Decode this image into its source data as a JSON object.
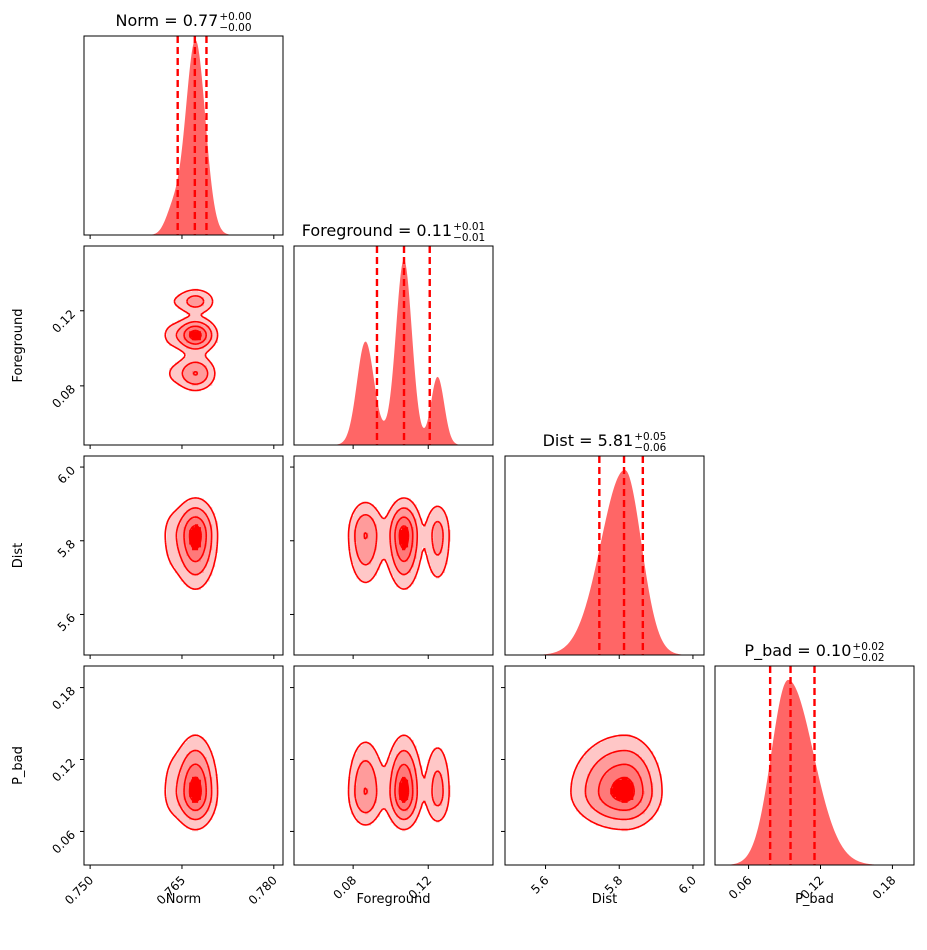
{
  "chart_data": {
    "type": "corner",
    "color": "#ff0000",
    "parameters": [
      {
        "name": "Norm",
        "median": 0.77,
        "err_plus": "0.00",
        "err_minus": "0.00",
        "title_name": "Norm",
        "title_value": "0.77",
        "range": [
          0.749,
          0.7815
        ],
        "ticks": [
          0.75,
          0.765,
          0.78
        ],
        "tick_labels": [
          "0.750",
          "0.765",
          "0.780"
        ],
        "quantiles": [
          0.7643,
          0.7671,
          0.769
        ],
        "hist_peak": 0.7672,
        "hist_sigma": 0.0016
      },
      {
        "name": "Foreground",
        "median": 0.11,
        "err_plus": "0.01",
        "err_minus": "0.01",
        "title_name": "Foreground",
        "title_value": "0.11",
        "range": [
          0.0485,
          0.1545
        ],
        "ticks": [
          0.08,
          0.12
        ],
        "tick_labels": [
          "0.08",
          "0.12"
        ],
        "quantiles": [
          0.0927,
          0.1071,
          0.1208
        ]
      },
      {
        "name": "Dist",
        "median": 5.81,
        "err_plus": "0.05",
        "err_minus": "0.06",
        "title_name": "Dist",
        "title_value": "5.81",
        "range": [
          5.49,
          6.03
        ],
        "ticks": [
          5.6,
          5.8,
          6.0
        ],
        "tick_labels": [
          "5.6",
          "5.8",
          "6.0"
        ],
        "quantiles": [
          5.746,
          5.813,
          5.864
        ],
        "hist_peak": 5.815,
        "hist_sigma": 0.055
      },
      {
        "name": "P_bad",
        "median": 0.1,
        "err_plus": "0.02",
        "err_minus": "0.02",
        "title_name": "P_bad",
        "title_value": "0.10",
        "range": [
          0.032,
          0.198
        ],
        "ticks": [
          0.06,
          0.12,
          0.18
        ],
        "tick_labels": [
          "0.06",
          "0.12",
          "0.18"
        ],
        "quantiles": [
          0.078,
          0.095,
          0.115
        ],
        "hist_peak": 0.093,
        "hist_sigma": 0.017
      }
    ],
    "foreground_modes": [
      {
        "mu": 0.0865,
        "sigma": 0.0045,
        "amp": 0.56
      },
      {
        "mu": 0.1071,
        "sigma": 0.0042,
        "amp": 1.0
      },
      {
        "mu": 0.125,
        "sigma": 0.0035,
        "amp": 0.38
      }
    ],
    "panel_titles": [
      "Norm = 0.77",
      "Foreground = 0.11",
      "Dist = 5.81",
      "P_bad = 0.10"
    ],
    "axis_labels": {
      "x": [
        "Norm",
        "Foreground",
        "Dist",
        "P_bad"
      ],
      "y": [
        "Foreground",
        "Dist",
        "P_bad"
      ]
    }
  }
}
